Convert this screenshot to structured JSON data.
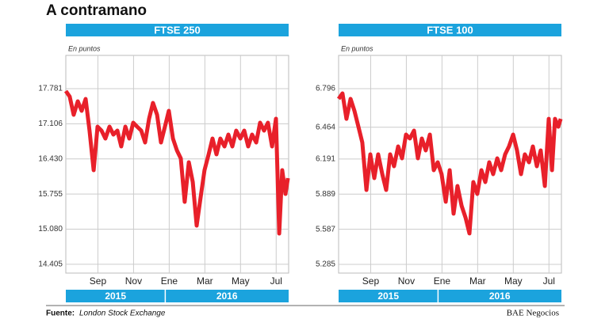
{
  "title": "A contramano",
  "source_label": "Fuente:",
  "source": "London Stock Exchange",
  "credit": "BAE Negocios",
  "chart_data": [
    {
      "type": "line",
      "title": "FTSE 250",
      "y_label": "En puntos",
      "years": [
        "2015",
        "2016"
      ],
      "color": "#e8202a",
      "grid": true,
      "xlim": [
        7.2,
        19.7
      ],
      "xticks": [
        {
          "value": 9,
          "label": "Sep"
        },
        {
          "value": 11,
          "label": "Nov"
        },
        {
          "value": 13,
          "label": "Ene"
        },
        {
          "value": 15,
          "label": "Mar"
        },
        {
          "value": 17,
          "label": "May"
        },
        {
          "value": 19,
          "label": "Jul"
        }
      ],
      "ylim": [
        14236,
        18420
      ],
      "yticks": [
        {
          "value": 14405,
          "label": "14.405"
        },
        {
          "value": 15080,
          "label": "15.080"
        },
        {
          "value": 15755,
          "label": "15.755"
        },
        {
          "value": 16430,
          "label": "16.430"
        },
        {
          "value": 17106,
          "label": "17.106"
        },
        {
          "value": 17781,
          "label": "17.781"
        }
      ],
      "x": [
        7.2,
        7.42,
        7.64,
        7.87,
        8.09,
        8.31,
        8.53,
        8.76,
        8.98,
        9.2,
        9.42,
        9.65,
        9.87,
        10.09,
        10.31,
        10.54,
        10.76,
        10.98,
        11.2,
        11.43,
        11.65,
        11.87,
        12.09,
        12.32,
        12.54,
        12.76,
        12.98,
        13.21,
        13.43,
        13.65,
        13.87,
        14.1,
        14.32,
        14.54,
        14.76,
        14.98,
        15.21,
        15.43,
        15.65,
        15.87,
        16.1,
        16.32,
        16.54,
        16.76,
        16.99,
        17.21,
        17.43,
        17.65,
        17.88,
        18.1,
        18.32,
        18.54,
        18.77,
        18.99,
        19.17,
        19.34,
        19.52,
        19.66
      ],
      "values": [
        17735,
        17629,
        17279,
        17538,
        17355,
        17583,
        16975,
        16214,
        17051,
        16975,
        16822,
        17051,
        16898,
        16975,
        16670,
        17051,
        16822,
        17127,
        17051,
        16975,
        16746,
        17203,
        17507,
        17279,
        16746,
        17051,
        17355,
        16822,
        16594,
        16441,
        15605,
        16366,
        15986,
        15149,
        15681,
        16214,
        16518,
        16822,
        16518,
        16822,
        16670,
        16898,
        16670,
        16975,
        16822,
        16975,
        16670,
        16898,
        16746,
        17127,
        16975,
        17127,
        16670,
        17203,
        14996,
        16214,
        15757,
        16062
      ]
    },
    {
      "type": "line",
      "title": "FTSE 100",
      "y_label": "En puntos",
      "years": [
        "2015",
        "2016"
      ],
      "color": "#e8202a",
      "grid": true,
      "xlim": [
        7.2,
        19.7
      ],
      "xticks": [
        {
          "value": 9,
          "label": "Sep"
        },
        {
          "value": 11,
          "label": "Nov"
        },
        {
          "value": 13,
          "label": "Ene"
        },
        {
          "value": 15,
          "label": "Mar"
        },
        {
          "value": 17,
          "label": "May"
        },
        {
          "value": 19,
          "label": "Jul"
        }
      ],
      "ylim": [
        5210,
        7082
      ],
      "yticks": [
        {
          "value": 5285,
          "label": "5.285"
        },
        {
          "value": 5587,
          "label": "5.587"
        },
        {
          "value": 5889,
          "label": "5.889"
        },
        {
          "value": 6191,
          "label": "6.191"
        },
        {
          "value": 6464,
          "label": "6.464"
        },
        {
          "value": 6796,
          "label": "6.796"
        }
      ],
      "x": [
        7.2,
        7.42,
        7.64,
        7.87,
        8.09,
        8.31,
        8.53,
        8.76,
        8.98,
        9.2,
        9.42,
        9.65,
        9.87,
        10.09,
        10.31,
        10.54,
        10.76,
        10.98,
        11.2,
        11.43,
        11.65,
        11.87,
        12.09,
        12.32,
        12.54,
        12.76,
        12.98,
        13.21,
        13.43,
        13.65,
        13.87,
        14.1,
        14.32,
        14.54,
        14.76,
        14.98,
        15.21,
        15.43,
        15.65,
        15.87,
        16.1,
        16.32,
        16.54,
        16.76,
        16.99,
        17.21,
        17.43,
        17.65,
        17.88,
        18.1,
        18.32,
        18.54,
        18.77,
        18.99,
        19.17,
        19.34,
        19.52,
        19.66
      ],
      "values": [
        6708,
        6755,
        6537,
        6708,
        6605,
        6469,
        6333,
        5925,
        6231,
        6027,
        6231,
        6061,
        5925,
        6231,
        6129,
        6299,
        6197,
        6401,
        6367,
        6435,
        6197,
        6367,
        6265,
        6401,
        6095,
        6163,
        6061,
        5823,
        6095,
        5721,
        5959,
        5789,
        5687,
        5551,
        5993,
        5891,
        6095,
        5993,
        6163,
        6061,
        6197,
        6095,
        6231,
        6299,
        6401,
        6265,
        6061,
        6231,
        6163,
        6299,
        6129,
        6265,
        5959,
        6537,
        6095,
        6537,
        6469,
        6537
      ]
    }
  ]
}
